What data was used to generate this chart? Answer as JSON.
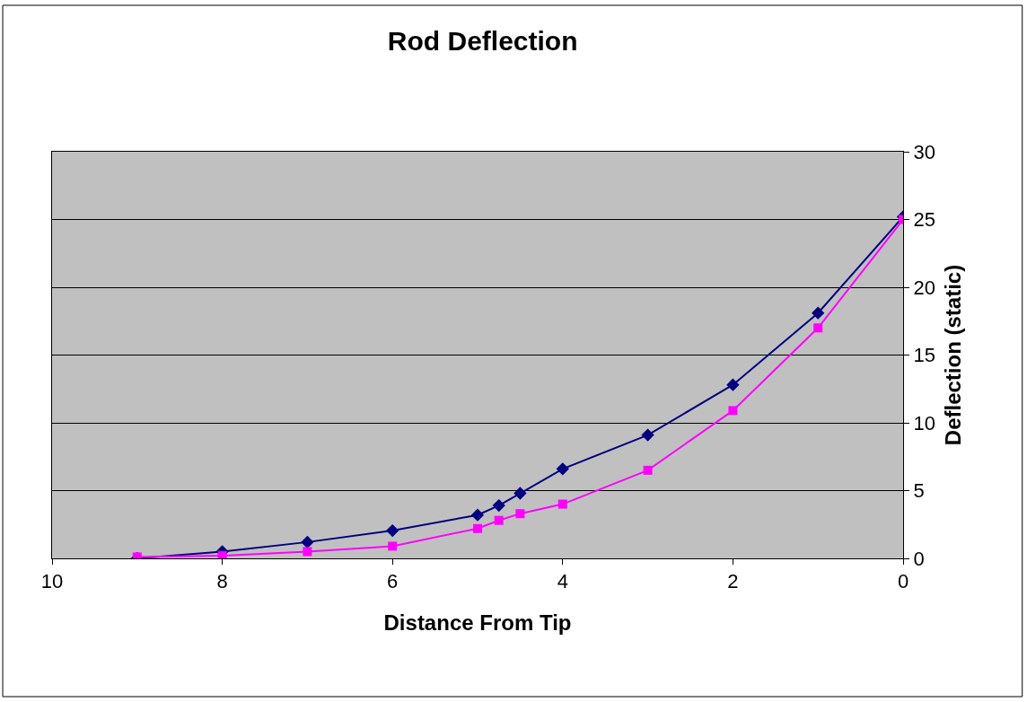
{
  "chart_data": {
    "type": "line",
    "title": "Rod Deflection",
    "xlabel": "Distance From Tip",
    "ylabel": "Deflection (static)",
    "xlim": [
      10,
      0
    ],
    "xticks": [
      10,
      8,
      6,
      4,
      2,
      0
    ],
    "ylim": [
      0,
      30
    ],
    "yticks": [
      0,
      5,
      10,
      15,
      20,
      25,
      30
    ],
    "grid": "y",
    "legend": false,
    "series": [
      {
        "color": "#000080",
        "marker": "diamond",
        "x": [
          9,
          8,
          7,
          6,
          5,
          4.75,
          4.5,
          4,
          3,
          2,
          1,
          0
        ],
        "values": [
          0,
          0.5,
          1.2,
          2.05,
          3.2,
          3.9,
          4.8,
          6.6,
          9.1,
          12.8,
          18.1,
          25.2
        ]
      },
      {
        "color": "#ff00ff",
        "marker": "square",
        "x": [
          9,
          8,
          7,
          6,
          5,
          4.75,
          4.5,
          4,
          3,
          2,
          1,
          0
        ],
        "values": [
          0.1,
          0.2,
          0.5,
          0.9,
          2.2,
          2.8,
          3.3,
          4.0,
          6.5,
          10.9,
          17.0,
          25.0
        ]
      }
    ]
  }
}
